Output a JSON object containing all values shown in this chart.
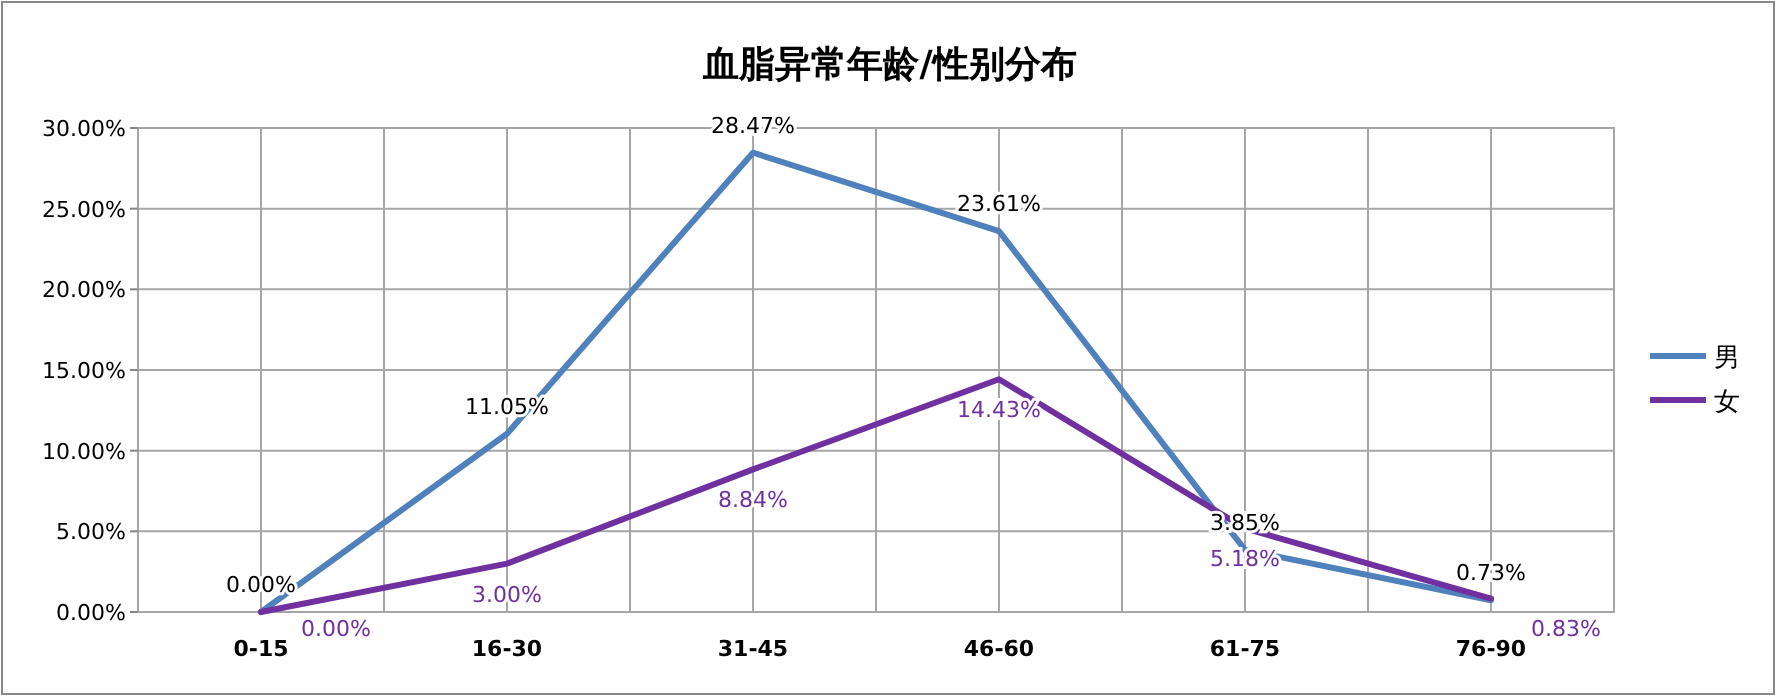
{
  "chart_data": {
    "type": "line",
    "title": "血脂异常年龄/性别分布",
    "categories": [
      "0-15",
      "16-30",
      "31-45",
      "46-60",
      "61-75",
      "76-90"
    ],
    "series": [
      {
        "name": "男",
        "color": "#4f81bd",
        "values": [
          0,
          11.05,
          28.47,
          23.61,
          3.85,
          0.73
        ],
        "value_labels": [
          "0.00%",
          "11.05%",
          "28.47%",
          "23.61%",
          "3.85%",
          "0.73%"
        ]
      },
      {
        "name": "女",
        "color": "#7030a0",
        "values": [
          0,
          3.0,
          8.84,
          14.43,
          5.18,
          0.83
        ],
        "value_labels": [
          "0.00%",
          "3.00%",
          "8.84%",
          "14.43%",
          "5.18%",
          "0.83%"
        ]
      }
    ],
    "ylim": [
      0,
      30
    ],
    "yticks": [
      {
        "value": 0,
        "label": "0.00%"
      },
      {
        "value": 5,
        "label": "5.00%"
      },
      {
        "value": 10,
        "label": "10.00%"
      },
      {
        "value": 15,
        "label": "15.00%"
      },
      {
        "value": 20,
        "label": "20.00%"
      },
      {
        "value": 25,
        "label": "25.00%"
      },
      {
        "value": 30,
        "label": "30.00%"
      }
    ],
    "grid": true,
    "legend": "right",
    "marker": "none",
    "line_style": "solid"
  }
}
